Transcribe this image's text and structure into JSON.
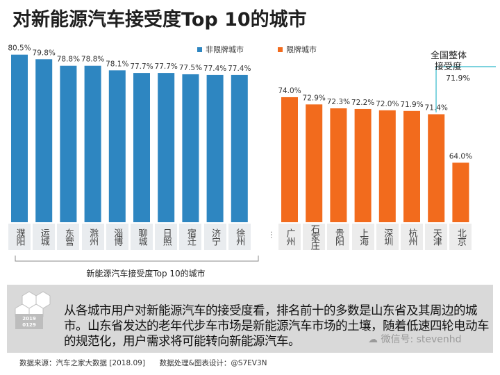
{
  "title": "对新能源汽车接受度Top 10的城市",
  "legend": {
    "blue": "非限牌城市",
    "orange": "限牌城市"
  },
  "annotation": {
    "line1": "全国整体",
    "line2": "接受度",
    "value": "71.9%"
  },
  "group_label": "新能源汽车接受度Top 10的城市",
  "colors": {
    "blue": "#2e86c1",
    "orange": "#f26b1d",
    "annotation_line": "#2fb8c9"
  },
  "chart_data": {
    "type": "bar",
    "title": "对新能源汽车接受度Top 10的城市",
    "xlabel": "",
    "ylabel": "",
    "ylim": [
      60,
      82
    ],
    "national_average": 71.9,
    "series": [
      {
        "name": "非限牌城市",
        "color": "#2e86c1",
        "categories": [
          "濮阳",
          "运城",
          "东营",
          "滁州",
          "淄博",
          "聊城",
          "日照",
          "宿迁",
          "济宁",
          "徐州"
        ],
        "values": [
          80.5,
          79.8,
          78.8,
          78.8,
          78.1,
          77.7,
          77.7,
          77.5,
          77.4,
          77.4
        ],
        "labels": [
          "80.5%",
          "79.8%",
          "78.8%",
          "78.8%",
          "78.1%",
          "77.7%",
          "77.7%",
          "77.5%",
          "77.4%",
          "77.4%"
        ]
      },
      {
        "name": "限牌城市",
        "color": "#f26b1d",
        "categories": [
          "广州",
          "石家庄",
          "贵阳",
          "上海",
          "深圳",
          "杭州",
          "天津",
          "北京"
        ],
        "values": [
          74.0,
          72.9,
          72.3,
          72.2,
          72.0,
          71.9,
          71.4,
          64.0
        ],
        "labels": [
          "74.0%",
          "72.9%",
          "72.3%",
          "72.2%",
          "72.0%",
          "71.9%",
          "71.4%",
          "64.0%"
        ]
      }
    ]
  },
  "caption": "从各城市用户对新能源汽车的接受度看，排名前十的多数是山东省及其周边的城市。山东省发达的老年代步车市场是新能源汽车市场的土壤，随着低速四轮电动车的规范化，用户需求将可能转向新能源汽车。",
  "footer": {
    "source": "数据来源：汽车之家大数据 [2018.09]",
    "design": "数据处理&图表设计：@S7EV3N"
  },
  "watermark": "微信号: stevenhd",
  "logo": {
    "year": "2019",
    "date": "0129"
  }
}
